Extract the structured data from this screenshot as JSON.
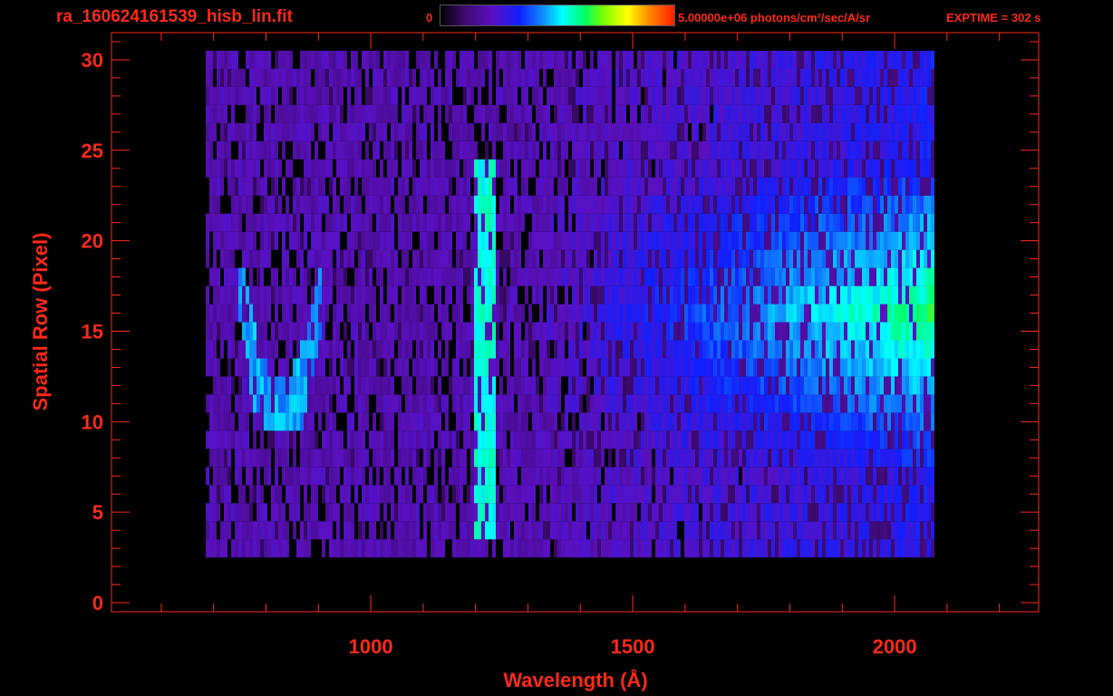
{
  "header": {
    "filename": "ra_160624161539_hisb_lin.fit",
    "colorbar_min": "0",
    "colorbar_max": "5.00000e+06 photons/cm²/sec/A/sr",
    "exptime": "EXPTIME = 302 s"
  },
  "colors": {
    "axis": "#ff2a1a",
    "background": "#000000"
  },
  "chart_data": {
    "type": "heatmap",
    "title": "ra_160624161539_hisb_lin.fit",
    "xlabel": "Wavelength (Å)",
    "ylabel": "Spatial Row (Pixel)",
    "xlim": [
      505,
      2275
    ],
    "ylim": [
      -0.5,
      31.5
    ],
    "xticks": [
      1000,
      1500,
      2000
    ],
    "yticks": [
      0,
      5,
      10,
      15,
      20,
      25,
      30
    ],
    "colorbar": {
      "min": 0,
      "max": 5000000,
      "units": "photons/cm²/sec/A/sr"
    },
    "features": [
      {
        "kind": "continuum",
        "x_range": [
          685,
          2070
        ],
        "y_range": [
          3,
          30
        ]
      },
      {
        "kind": "bright_band",
        "x_range": [
          1195,
          1235
        ],
        "y_range": [
          4,
          24
        ]
      },
      {
        "kind": "arc",
        "x_range": [
          745,
          905
        ],
        "y_range": [
          10,
          18
        ]
      },
      {
        "kind": "bright_region",
        "x_range": [
          1750,
          2070
        ],
        "y_range": [
          7,
          23
        ]
      }
    ]
  }
}
